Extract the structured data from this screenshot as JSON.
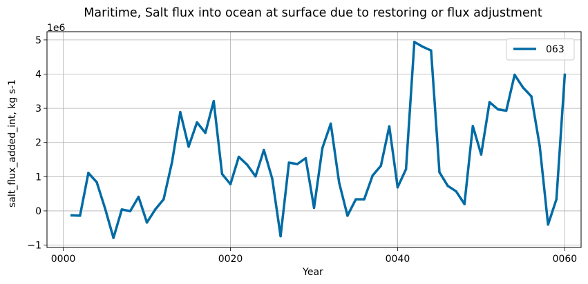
{
  "chart_data": {
    "type": "line",
    "title": "Maritime, Salt flux into ocean at surface due to restoring or flux adjustment",
    "xlabel": "Year",
    "ylabel": "salt_flux_added_int, kg s-1",
    "y_offset_label": "1e6",
    "xlim": [
      -1.95,
      61.95
    ],
    "ylim": [
      -1.07,
      5.24
    ],
    "x_ticks": [
      0,
      20,
      40,
      60
    ],
    "x_tick_labels": [
      "0000",
      "0020",
      "0040",
      "0060"
    ],
    "y_ticks": [
      -1,
      0,
      1,
      2,
      3,
      4,
      5
    ],
    "y_tick_labels": [
      "−1",
      "0",
      "1",
      "2",
      "3",
      "4",
      "5"
    ],
    "grid": true,
    "legend_position": "top-right",
    "series": [
      {
        "name": "063",
        "color": "#006ba4",
        "x": [
          1,
          2,
          3,
          4,
          5,
          6,
          7,
          8,
          9,
          10,
          11,
          12,
          13,
          14,
          15,
          16,
          17,
          18,
          19,
          20,
          21,
          22,
          23,
          24,
          25,
          26,
          27,
          28,
          29,
          30,
          31,
          32,
          33,
          34,
          35,
          36,
          37,
          38,
          39,
          40,
          41,
          42,
          43,
          44,
          45,
          46,
          47,
          48,
          49,
          50,
          51,
          52,
          53,
          54,
          55,
          56,
          57,
          58,
          59,
          60
        ],
        "values": [
          -0.13,
          -0.14,
          1.11,
          0.84,
          0.07,
          -0.79,
          0.04,
          -0.01,
          0.41,
          -0.34,
          0.04,
          0.34,
          1.42,
          2.89,
          1.88,
          2.59,
          2.28,
          3.21,
          1.08,
          0.78,
          1.58,
          1.35,
          1.01,
          1.78,
          0.94,
          -0.74,
          1.41,
          1.37,
          1.54,
          0.09,
          1.84,
          2.55,
          0.83,
          -0.14,
          0.34,
          0.34,
          1.03,
          1.32,
          2.47,
          0.69,
          1.22,
          4.94,
          4.8,
          4.69,
          1.13,
          0.73,
          0.57,
          0.2,
          2.48,
          1.65,
          3.18,
          2.97,
          2.93,
          3.98,
          3.61,
          3.35,
          1.9,
          -0.4,
          0.34,
          3.98
        ]
      }
    ]
  }
}
